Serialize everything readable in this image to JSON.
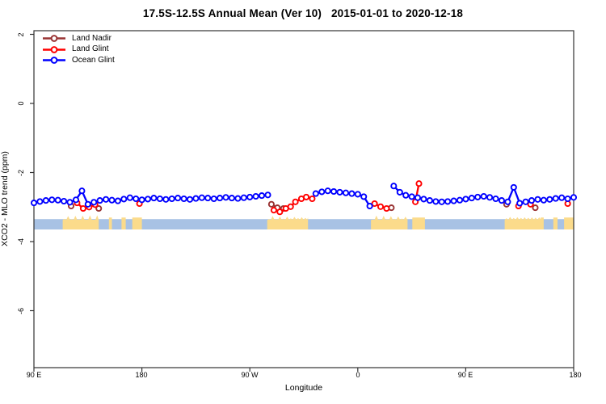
{
  "chart_data": {
    "type": "line",
    "title": "17.5S-12.5S Annual Mean (Ver 10)   2015-01-01 to 2020-12-18",
    "xlabel": "Longitude",
    "ylabel": "XCO2 - MLO trend (ppm)",
    "grid": false,
    "legend_position": "top-left",
    "x_axis": {
      "range_axis_coords": [
        90,
        540
      ],
      "ticks": [
        90,
        180,
        270,
        360,
        450,
        540
      ],
      "tick_labels": [
        "90 E",
        "180",
        "90 W",
        "0",
        "90 E",
        "180"
      ],
      "note": "longitude axis wraps eastward from 90E around the globe to 180"
    },
    "y_axis": {
      "range": [
        -7.65,
        2.1
      ],
      "ticks": [
        2,
        0,
        -2,
        -4,
        -6
      ],
      "tick_labels": [
        "2",
        "0",
        "-2",
        "-4",
        "-6"
      ]
    },
    "series": [
      {
        "name": "Land Nadir",
        "color": "#993333",
        "marker": "open-circle",
        "segments": [
          [
            [
              121,
              -2.97
            ]
          ],
          [
            [
              144,
              -3.04
            ]
          ],
          [
            [
              288,
              -2.92
            ],
            [
              293,
              -3.02
            ],
            [
              298,
              -3.04
            ]
          ],
          [
            [
              388,
              -3.02
            ]
          ],
          [
            [
              484,
              -2.92
            ]
          ],
          [
            [
              508,
              -3.02
            ]
          ]
        ]
      },
      {
        "name": "Land Glint",
        "color": "#FF0000",
        "marker": "open-circle",
        "segments": [
          [
            [
              126,
              -2.88
            ],
            [
              131,
              -3.04
            ],
            [
              136,
              -3.0
            ],
            [
              141,
              -2.93
            ]
          ],
          [
            [
              178,
              -2.9
            ]
          ],
          [
            [
              290,
              -3.09
            ],
            [
              295,
              -3.14
            ],
            [
              300,
              -3.04
            ],
            [
              304,
              -2.99
            ],
            [
              308,
              -2.85
            ],
            [
              313,
              -2.76
            ],
            [
              317,
              -2.71
            ],
            [
              322,
              -2.76
            ]
          ],
          [
            [
              374,
              -2.9
            ],
            [
              379,
              -2.99
            ],
            [
              384,
              -3.04
            ]
          ],
          [
            [
              408,
              -2.85
            ],
            [
              411,
              -2.32
            ]
          ],
          [
            [
              494,
              -2.97
            ]
          ],
          [
            [
              504,
              -2.92
            ]
          ],
          [
            [
              535,
              -2.9
            ]
          ]
        ]
      },
      {
        "name": "Ocean Glint",
        "color": "#0000FF",
        "marker": "open-circle",
        "segments": [
          [
            [
              90,
              -2.88
            ],
            [
              95,
              -2.84
            ],
            [
              100,
              -2.81
            ],
            [
              105,
              -2.79
            ],
            [
              110,
              -2.8
            ],
            [
              115,
              -2.83
            ],
            [
              120,
              -2.86
            ],
            [
              125,
              -2.79
            ],
            [
              130,
              -2.53
            ],
            [
              135,
              -2.92
            ],
            [
              140,
              -2.86
            ],
            [
              145,
              -2.81
            ],
            [
              150,
              -2.78
            ],
            [
              155,
              -2.8
            ],
            [
              160,
              -2.82
            ],
            [
              165,
              -2.77
            ],
            [
              170,
              -2.73
            ],
            [
              175,
              -2.76
            ],
            [
              180,
              -2.79
            ],
            [
              185,
              -2.77
            ],
            [
              190,
              -2.74
            ],
            [
              195,
              -2.76
            ],
            [
              200,
              -2.78
            ],
            [
              205,
              -2.76
            ],
            [
              210,
              -2.74
            ],
            [
              215,
              -2.76
            ],
            [
              220,
              -2.78
            ],
            [
              225,
              -2.75
            ],
            [
              230,
              -2.73
            ],
            [
              235,
              -2.74
            ],
            [
              240,
              -2.76
            ],
            [
              245,
              -2.74
            ],
            [
              250,
              -2.72
            ],
            [
              255,
              -2.74
            ],
            [
              260,
              -2.75
            ],
            [
              265,
              -2.73
            ],
            [
              270,
              -2.71
            ],
            [
              275,
              -2.69
            ],
            [
              280,
              -2.67
            ],
            [
              285,
              -2.65
            ]
          ],
          [
            [
              325,
              -2.61
            ],
            [
              330,
              -2.56
            ],
            [
              335,
              -2.53
            ],
            [
              340,
              -2.55
            ],
            [
              345,
              -2.57
            ],
            [
              350,
              -2.59
            ],
            [
              355,
              -2.61
            ],
            [
              360,
              -2.63
            ],
            [
              365,
              -2.7
            ],
            [
              370,
              -2.97
            ]
          ],
          [
            [
              390,
              -2.39
            ],
            [
              395,
              -2.57
            ],
            [
              400,
              -2.66
            ],
            [
              405,
              -2.7
            ],
            [
              410,
              -2.73
            ],
            [
              415,
              -2.77
            ],
            [
              420,
              -2.81
            ],
            [
              425,
              -2.84
            ],
            [
              430,
              -2.85
            ],
            [
              435,
              -2.84
            ],
            [
              440,
              -2.82
            ],
            [
              445,
              -2.8
            ],
            [
              450,
              -2.77
            ],
            [
              455,
              -2.74
            ],
            [
              460,
              -2.71
            ],
            [
              465,
              -2.69
            ],
            [
              470,
              -2.72
            ],
            [
              475,
              -2.76
            ],
            [
              480,
              -2.81
            ],
            [
              485,
              -2.85
            ],
            [
              490,
              -2.43
            ],
            [
              495,
              -2.89
            ],
            [
              500,
              -2.85
            ],
            [
              505,
              -2.81
            ],
            [
              510,
              -2.78
            ],
            [
              515,
              -2.8
            ],
            [
              520,
              -2.78
            ],
            [
              525,
              -2.75
            ],
            [
              530,
              -2.73
            ],
            [
              535,
              -2.76
            ],
            [
              540,
              -2.72
            ]
          ]
        ]
      }
    ],
    "surface_band": {
      "description": "land/ocean strip along the 17.5S-12.5S latitude band",
      "ocean_color": "#A8C2E4",
      "land_color": "#FBDB8B",
      "y_range": [
        -3.65,
        -3.35
      ],
      "land_segments_axis_coords": [
        [
          114,
          144
        ],
        [
          152.5,
          155
        ],
        [
          163,
          166.5
        ],
        [
          172,
          180
        ],
        [
          284.5,
          318.5
        ],
        [
          371,
          401.5
        ],
        [
          405.5,
          416
        ],
        [
          482.5,
          513
        ],
        [
          512.5,
          515
        ],
        [
          523,
          526.5
        ],
        [
          532,
          540
        ]
      ]
    }
  }
}
